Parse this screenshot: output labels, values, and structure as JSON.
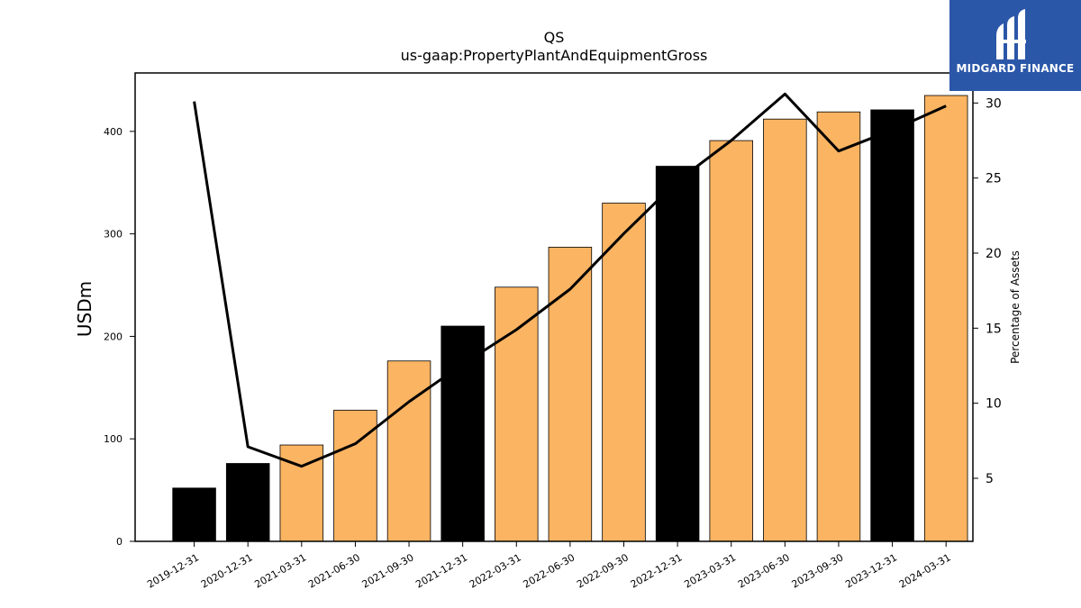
{
  "chart_data": {
    "type": "bar",
    "title": "QS",
    "subtitle": "us-gaap:PropertyPlantAndEquipmentGross",
    "ylabel": "USDm",
    "y2label": "Percentage of Assets",
    "categories": [
      "2019-12-31",
      "2020-12-31",
      "2021-03-31",
      "2021-06-30",
      "2021-09-30",
      "2021-12-31",
      "2022-03-31",
      "2022-06-30",
      "2022-09-30",
      "2022-12-31",
      "2023-03-31",
      "2023-06-30",
      "2023-09-30",
      "2023-12-31",
      "2024-03-31"
    ],
    "series": [
      {
        "type": "bar",
        "axis": "left",
        "values": [
          52,
          76,
          94,
          128,
          176,
          210,
          248,
          287,
          330,
          366,
          391,
          412,
          419,
          421,
          435
        ],
        "colors": [
          "#000000",
          "#000000",
          "#fbb462",
          "#fbb462",
          "#fbb462",
          "#000000",
          "#fbb462",
          "#fbb462",
          "#fbb462",
          "#000000",
          "#fbb462",
          "#fbb462",
          "#fbb462",
          "#000000",
          "#fbb462"
        ]
      },
      {
        "type": "line",
        "axis": "right",
        "color": "#000000",
        "values": [
          30.1,
          7.1,
          5.8,
          7.3,
          10.1,
          12.6,
          14.9,
          17.6,
          21.3,
          24.8,
          27.5,
          30.6,
          26.8,
          28.2,
          29.8
        ]
      }
    ],
    "ylim": [
      0,
      457
    ],
    "yticks": [
      0,
      100,
      200,
      300,
      400
    ],
    "y2lim": [
      0.8,
      32.0
    ],
    "y2ticks": [
      5,
      10,
      15,
      20,
      25,
      30
    ],
    "grid": false,
    "legend": "none"
  },
  "logo": {
    "text": "MIDGARD FINANCE"
  }
}
